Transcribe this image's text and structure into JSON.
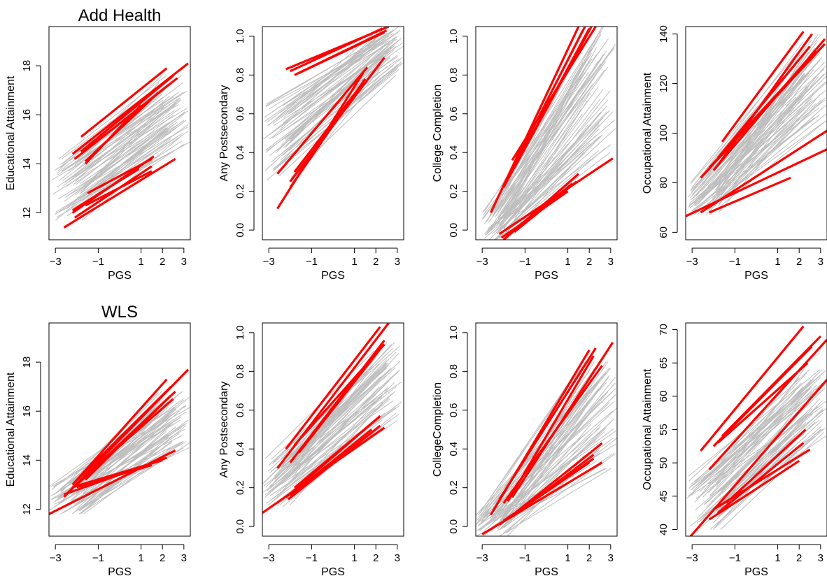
{
  "chart_data": [
    {
      "type": "line",
      "row_title": "Add Health",
      "xlabel": "PGS",
      "ylabel": "Educational Attainment",
      "xlim": [
        -3.3,
        3.3
      ],
      "ylim": [
        10.9,
        19.6
      ],
      "xticks": [
        -3,
        -1,
        1,
        2,
        3
      ],
      "xtick_labels": [
        "−3",
        "−1",
        "1",
        "2",
        "3"
      ],
      "yticks": [
        12,
        14,
        16,
        18
      ],
      "ytick_labels": [
        "12",
        "14",
        "16",
        "18"
      ],
      "gray_band": {
        "count": 70,
        "xmin_range": [
          -3.2,
          -1.6
        ],
        "xmax_range": [
          1.8,
          3.3
        ],
        "left_y_range": [
          11.7,
          14.2
        ],
        "right_y_range": [
          14.8,
          17.6
        ]
      },
      "red_lines": [
        [
          -2.6,
          11.4,
          2.6,
          14.2
        ],
        [
          -2.2,
          12.0,
          1.6,
          14.3
        ],
        [
          -2.1,
          11.8,
          1.5,
          13.9
        ],
        [
          -1.6,
          12.3,
          1.5,
          13.7
        ],
        [
          -2.2,
          12.1,
          0.9,
          13.8
        ],
        [
          -1.5,
          12.8,
          1.5,
          14.2
        ],
        [
          -1.8,
          15.1,
          2.2,
          17.9
        ],
        [
          -2.2,
          14.4,
          3.2,
          18.1
        ],
        [
          -2.1,
          14.2,
          2.7,
          17.5
        ],
        [
          -1.6,
          14.1,
          1.8,
          16.9
        ],
        [
          -1.8,
          14.5,
          2.5,
          17.6
        ],
        [
          -1.6,
          14.0,
          1.0,
          16.4
        ]
      ]
    },
    {
      "type": "line",
      "xlabel": "PGS",
      "ylabel": "Any Postsecondary",
      "xlim": [
        -3.3,
        3.3
      ],
      "ylim": [
        -0.05,
        1.05
      ],
      "xticks": [
        -3,
        -1,
        1,
        2,
        3
      ],
      "xtick_labels": [
        "−3",
        "−1",
        "1",
        "2",
        "3"
      ],
      "yticks": [
        0.0,
        0.2,
        0.4,
        0.6,
        0.8,
        1.0
      ],
      "ytick_labels": [
        "0.0",
        "0.2",
        "0.4",
        "0.6",
        "0.8",
        "1.0"
      ],
      "gray_band": {
        "count": 70,
        "xmin_range": [
          -3.3,
          -1.8
        ],
        "xmax_range": [
          2.0,
          3.3
        ],
        "left_y_range": [
          0.25,
          0.65
        ],
        "right_y_range": [
          0.8,
          1.05
        ]
      },
      "red_lines": [
        [
          -2.2,
          0.83,
          2.6,
          1.05
        ],
        [
          -1.8,
          0.8,
          2.5,
          1.03
        ],
        [
          -2.0,
          0.82,
          2.3,
          1.04
        ],
        [
          -1.6,
          0.81,
          2.4,
          1.02
        ],
        [
          -2.6,
          0.11,
          1.4,
          0.81
        ],
        [
          -2.6,
          0.29,
          1.6,
          0.84
        ],
        [
          -2.0,
          0.25,
          2.4,
          0.89
        ],
        [
          -2.0,
          0.22,
          1.5,
          0.78
        ],
        [
          -1.8,
          0.3,
          1.4,
          0.76
        ]
      ]
    },
    {
      "type": "line",
      "xlabel": "PGS",
      "ylabel": "College Completion",
      "xlim": [
        -3.3,
        3.3
      ],
      "ylim": [
        -0.05,
        1.05
      ],
      "xticks": [
        -3,
        -1,
        1,
        2,
        3
      ],
      "xtick_labels": [
        "−3",
        "−1",
        "1",
        "2",
        "3"
      ],
      "yticks": [
        0.0,
        0.2,
        0.4,
        0.6,
        0.8,
        1.0
      ],
      "ytick_labels": [
        "0.0",
        "0.2",
        "0.4",
        "0.6",
        "0.8",
        "1.0"
      ],
      "gray_band": {
        "count": 70,
        "xmin_range": [
          -3.0,
          -1.8
        ],
        "xmax_range": [
          1.6,
          3.3
        ],
        "left_y_range": [
          -0.05,
          0.1
        ],
        "right_y_range": [
          0.4,
          1.05
        ]
      },
      "red_lines": [
        [
          -2.6,
          0.09,
          1.5,
          1.05
        ],
        [
          -2.0,
          0.23,
          1.8,
          1.05
        ],
        [
          -1.6,
          0.36,
          2.3,
          1.05
        ],
        [
          -2.0,
          0.22,
          2.0,
          1.04
        ],
        [
          -1.5,
          0.32,
          2.1,
          1.05
        ],
        [
          -2.0,
          -0.05,
          1.5,
          0.29
        ],
        [
          -1.8,
          -0.03,
          1.2,
          0.24
        ],
        [
          -2.2,
          -0.02,
          3.1,
          0.37
        ],
        [
          -1.5,
          -0.01,
          1.4,
          0.25
        ],
        [
          -2.1,
          -0.04,
          1.0,
          0.2
        ]
      ]
    },
    {
      "type": "line",
      "xlabel": "PGS",
      "ylabel": "Occupational Attainment",
      "xlim": [
        -3.3,
        3.3
      ],
      "ylim": [
        57,
        143
      ],
      "xticks": [
        -3,
        -1,
        1,
        2,
        3
      ],
      "xtick_labels": [
        "−3",
        "−1",
        "1",
        "2",
        "3"
      ],
      "yticks": [
        60,
        80,
        100,
        120,
        140
      ],
      "ytick_labels": [
        "60",
        "80",
        "100",
        "120",
        "140"
      ],
      "gray_band": {
        "count": 70,
        "xmin_range": [
          -3.2,
          -1.6
        ],
        "xmax_range": [
          1.8,
          3.3
        ],
        "left_y_range": [
          67,
          80
        ],
        "right_y_range": [
          105,
          140
        ]
      },
      "red_lines": [
        [
          -3.3,
          66.5,
          3.3,
          93.5
        ],
        [
          -2.6,
          68.0,
          3.3,
          101.0
        ],
        [
          -2.2,
          68.0,
          1.6,
          82.0
        ],
        [
          -2.6,
          82.0,
          3.2,
          136.0
        ],
        [
          -1.8,
          87.0,
          2.6,
          140.0
        ],
        [
          -2.2,
          86.0,
          2.8,
          133.0
        ],
        [
          -1.6,
          96.5,
          2.2,
          141.0
        ],
        [
          -2.0,
          85.0,
          3.2,
          138.0
        ],
        [
          -1.8,
          90.0,
          2.5,
          135.0
        ]
      ]
    },
    {
      "type": "line",
      "row_title": "WLS",
      "xlabel": "PGS",
      "ylabel": "Educational Attainment",
      "xlim": [
        -3.3,
        3.3
      ],
      "ylim": [
        10.9,
        19.6
      ],
      "xticks": [
        -3,
        -1,
        1,
        2,
        3
      ],
      "xtick_labels": [
        "−3",
        "−1",
        "1",
        "2",
        "3"
      ],
      "yticks": [
        12,
        14,
        16,
        18
      ],
      "ytick_labels": [
        "12",
        "14",
        "16",
        "18"
      ],
      "gray_band": {
        "count": 70,
        "xmin_range": [
          -3.3,
          -1.6
        ],
        "xmax_range": [
          1.8,
          3.3
        ],
        "left_y_range": [
          11.8,
          13.0
        ],
        "right_y_range": [
          14.5,
          16.8
        ]
      },
      "red_lines": [
        [
          -3.3,
          11.8,
          2.6,
          14.4
        ],
        [
          -2.6,
          12.6,
          2.2,
          14.1
        ],
        [
          -2.2,
          12.9,
          2.0,
          14.0
        ],
        [
          -2.0,
          12.9,
          1.5,
          13.8
        ],
        [
          -2.6,
          12.5,
          3.2,
          17.7
        ],
        [
          -2.2,
          13.0,
          2.2,
          17.3
        ],
        [
          -2.0,
          13.0,
          2.6,
          16.8
        ],
        [
          -2.1,
          13.1,
          2.4,
          17.0
        ],
        [
          -1.8,
          13.2,
          2.5,
          16.5
        ],
        [
          -1.6,
          13.2,
          2.0,
          16.3
        ]
      ]
    },
    {
      "type": "line",
      "xlabel": "PGS",
      "ylabel": "Any Postsecondary",
      "xlim": [
        -3.3,
        3.3
      ],
      "ylim": [
        -0.05,
        1.05
      ],
      "xticks": [
        -3,
        -1,
        1,
        2,
        3
      ],
      "xtick_labels": [
        "−3",
        "−1",
        "1",
        "2",
        "3"
      ],
      "yticks": [
        0.0,
        0.2,
        0.4,
        0.6,
        0.8,
        1.0
      ],
      "ytick_labels": [
        "0.0",
        "0.2",
        "0.4",
        "0.6",
        "0.8",
        "1.0"
      ],
      "gray_band": {
        "count": 70,
        "xmin_range": [
          -3.3,
          -1.8
        ],
        "xmax_range": [
          1.8,
          3.3
        ],
        "left_y_range": [
          0.1,
          0.35
        ],
        "right_y_range": [
          0.55,
          0.95
        ]
      },
      "red_lines": [
        [
          -3.3,
          0.07,
          2.4,
          0.51
        ],
        [
          -2.2,
          0.15,
          2.2,
          0.57
        ],
        [
          -2.0,
          0.16,
          1.8,
          0.5
        ],
        [
          -1.8,
          0.2,
          2.0,
          0.55
        ],
        [
          -2.1,
          0.14,
          2.2,
          0.52
        ],
        [
          -2.6,
          0.3,
          2.6,
          1.05
        ],
        [
          -2.2,
          0.4,
          2.2,
          1.03
        ],
        [
          -2.0,
          0.33,
          2.4,
          0.96
        ],
        [
          -1.8,
          0.42,
          2.4,
          0.94
        ],
        [
          -1.6,
          0.38,
          2.3,
          0.93
        ]
      ]
    },
    {
      "type": "line",
      "xlabel": "PGS",
      "ylabel": "CollegeCompletion",
      "xlim": [
        -3.3,
        3.3
      ],
      "ylim": [
        -0.05,
        1.05
      ],
      "xticks": [
        -3,
        -1,
        1,
        2,
        3
      ],
      "xtick_labels": [
        "−3",
        "−1",
        "1",
        "2",
        "3"
      ],
      "yticks": [
        0.0,
        0.2,
        0.4,
        0.6,
        0.8,
        1.0
      ],
      "ytick_labels": [
        "0.0",
        "0.2",
        "0.4",
        "0.6",
        "0.8",
        "1.0"
      ],
      "gray_band": {
        "count": 70,
        "xmin_range": [
          -3.3,
          -1.8
        ],
        "xmax_range": [
          1.6,
          3.3
        ],
        "left_y_range": [
          -0.05,
          0.06
        ],
        "right_y_range": [
          0.3,
          0.85
        ]
      },
      "red_lines": [
        [
          -3.0,
          -0.04,
          2.6,
          0.33
        ],
        [
          -2.2,
          0.01,
          2.2,
          0.35
        ],
        [
          -1.8,
          0.04,
          2.6,
          0.43
        ],
        [
          -2.0,
          0.03,
          2.0,
          0.33
        ],
        [
          -1.6,
          0.05,
          2.2,
          0.37
        ],
        [
          -2.6,
          0.06,
          2.0,
          0.91
        ],
        [
          -2.2,
          0.14,
          2.3,
          0.92
        ],
        [
          -2.0,
          0.12,
          2.6,
          0.83
        ],
        [
          -1.8,
          0.13,
          2.2,
          0.88
        ],
        [
          -1.6,
          0.15,
          3.1,
          0.95
        ]
      ]
    },
    {
      "type": "line",
      "xlabel": "PGS",
      "ylabel": "Occupational Attainment",
      "xlim": [
        -3.3,
        3.3
      ],
      "ylim": [
        39,
        71
      ],
      "xticks": [
        -3,
        -1,
        1,
        2,
        3
      ],
      "xtick_labels": [
        "−3",
        "−1",
        "1",
        "2",
        "3"
      ],
      "yticks": [
        40,
        45,
        50,
        55,
        60,
        65,
        70
      ],
      "ytick_labels": [
        "40",
        "45",
        "50",
        "55",
        "60",
        "65",
        "70"
      ],
      "gray_band": {
        "count": 70,
        "xmin_range": [
          -3.3,
          -1.6
        ],
        "xmax_range": [
          1.8,
          3.3
        ],
        "left_y_range": [
          40,
          48
        ],
        "right_y_range": [
          54,
          64
        ]
      },
      "red_lines": [
        [
          -3.2,
          38.5,
          3.3,
          62.5
        ],
        [
          -2.2,
          41.5,
          2.0,
          50.3
        ],
        [
          -1.8,
          42.5,
          2.2,
          53.0
        ],
        [
          -1.4,
          44.0,
          2.3,
          55.0
        ],
        [
          -2.0,
          43.0,
          2.5,
          52.0
        ],
        [
          -2.6,
          51.8,
          2.2,
          70.5
        ],
        [
          -2.2,
          49.0,
          3.3,
          68.5
        ],
        [
          -2.0,
          52.5,
          2.6,
          67.5
        ],
        [
          -1.8,
          53.0,
          2.4,
          65.0
        ],
        [
          -1.6,
          54.0,
          3.0,
          69.0
        ]
      ]
    }
  ]
}
